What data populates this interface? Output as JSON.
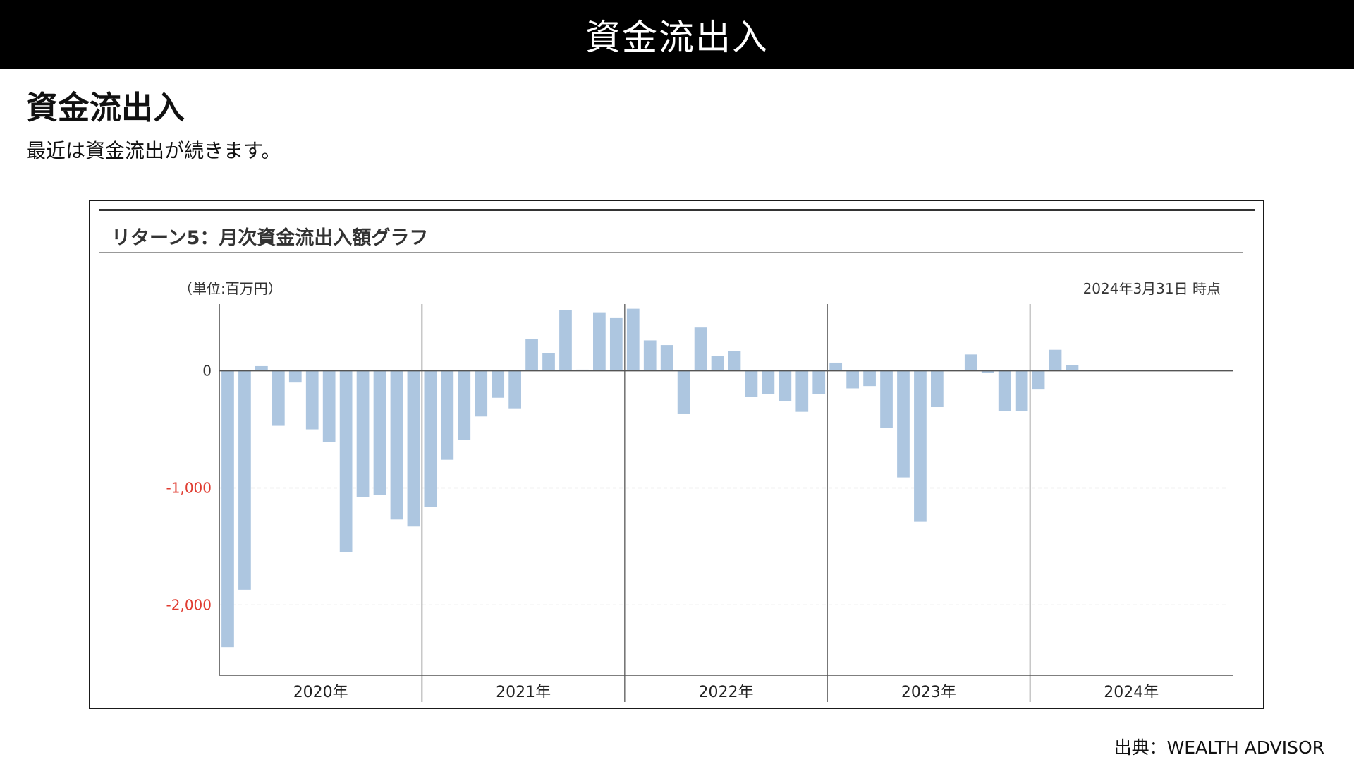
{
  "top_bar": {
    "title": "資金流出入"
  },
  "section": {
    "heading": "資金流出入",
    "lead": "最近は資金流出が続きます。"
  },
  "chart_panel": {
    "header": "リターン5：月次資金流出入額グラフ",
    "unit": "（単位:百万円）",
    "as_of": "2024年3月31日 時点"
  },
  "source": "出典：WEALTH ADVISOR",
  "colors": {
    "bar": "#adc6e0",
    "negative_tick": "#e03c31",
    "axis": "#555555",
    "grid": "#cccccc"
  },
  "chart_data": {
    "type": "bar",
    "title": "リターン5：月次資金流出入額グラフ",
    "ylabel": "（単位:百万円）",
    "ylim": [
      -2600,
      570
    ],
    "yticks": [
      {
        "value": 0,
        "label": "0"
      },
      {
        "value": -1000,
        "label": "-1,000"
      },
      {
        "value": -2000,
        "label": "-2,000"
      }
    ],
    "grid": "dashed at -1,000 and -2,000",
    "year_groups": [
      "2020年",
      "2021年",
      "2022年",
      "2023年",
      "2024年"
    ],
    "categories": [
      "2020-01",
      "2020-02",
      "2020-03",
      "2020-04",
      "2020-05",
      "2020-06",
      "2020-07",
      "2020-08",
      "2020-09",
      "2020-10",
      "2020-11",
      "2020-12",
      "2021-01",
      "2021-02",
      "2021-03",
      "2021-04",
      "2021-05",
      "2021-06",
      "2021-07",
      "2021-08",
      "2021-09",
      "2021-10",
      "2021-11",
      "2021-12",
      "2022-01",
      "2022-02",
      "2022-03",
      "2022-04",
      "2022-05",
      "2022-06",
      "2022-07",
      "2022-08",
      "2022-09",
      "2022-10",
      "2022-11",
      "2022-12",
      "2023-01",
      "2023-02",
      "2023-03",
      "2023-04",
      "2023-05",
      "2023-06",
      "2023-07",
      "2023-08",
      "2023-09",
      "2023-10",
      "2023-11",
      "2023-12",
      "2024-01",
      "2024-02",
      "2024-03"
    ],
    "values": [
      -2360,
      -1870,
      40,
      -470,
      -100,
      -500,
      -610,
      -1550,
      -1080,
      -1060,
      -1270,
      -1330,
      -1160,
      -760,
      -590,
      -390,
      -230,
      -320,
      270,
      150,
      520,
      10,
      500,
      450,
      530,
      260,
      220,
      -370,
      370,
      130,
      170,
      -220,
      -200,
      -260,
      -350,
      -200,
      70,
      -150,
      -130,
      -490,
      -910,
      -1290,
      -310,
      0,
      140,
      -20,
      -340,
      -340,
      -160,
      180,
      50
    ]
  }
}
